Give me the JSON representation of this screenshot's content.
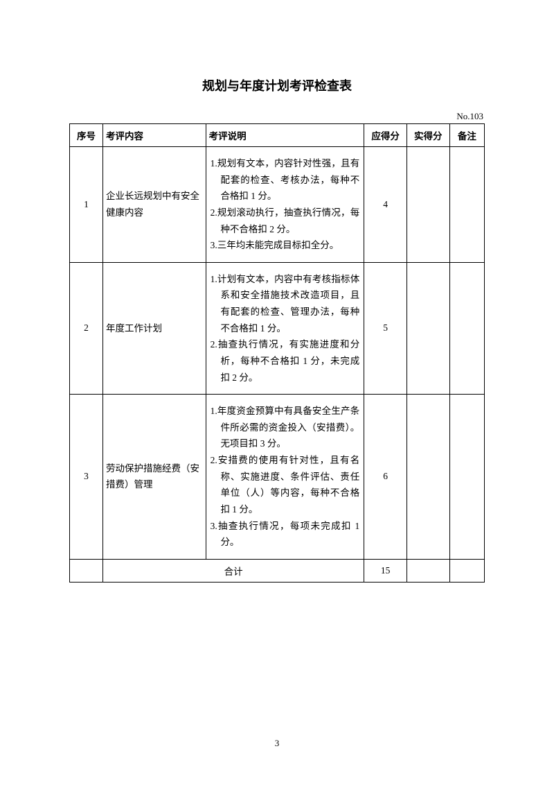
{
  "title": "规划与年度计划考评检查表",
  "doc_no": "No.103",
  "columns": {
    "idx": "序号",
    "content": "考评内容",
    "desc": "考评说明",
    "max": "应得分",
    "actual": "实得分",
    "note": "备注"
  },
  "rows": [
    {
      "idx": "1",
      "content": "企业长远规划中有安全健康内容",
      "desc": [
        "1.规划有文本，内容针对性强，且有配套的检查、考核办法，每种不合格扣 1 分。",
        "2.规划滚动执行，抽查执行情况，每种不合格扣 2 分。",
        "3.三年均未能完成目标扣全分。"
      ],
      "max": "4",
      "actual": "",
      "note": ""
    },
    {
      "idx": "2",
      "content": "年度工作计划",
      "desc": [
        "1.计划有文本，内容中有考核指标体系和安全措施技术改造项目，且有配套的检查、管理办法，每种不合格扣 1 分。",
        "2.抽查执行情况，有实施进度和分析，每种不合格扣 1 分，未完成扣 2 分。"
      ],
      "max": "5",
      "actual": "",
      "note": ""
    },
    {
      "idx": "3",
      "content": "劳动保护措施经费（安措费）管理",
      "desc": [
        "1.年度资金预算中有具备安全生产条件所必需的资金投入（安措费）。无项目扣 3 分。",
        "2.安措费的使用有针对性，且有名称、实施进度、条件评估、责任单位（人）等内容，每种不合格扣 1 分。",
        "3.抽查执行情况，每项未完成扣 1 分。"
      ],
      "max": "6",
      "actual": "",
      "note": ""
    }
  ],
  "total": {
    "label": "合计",
    "max": "15",
    "actual": "",
    "note": ""
  },
  "page_number": "3"
}
